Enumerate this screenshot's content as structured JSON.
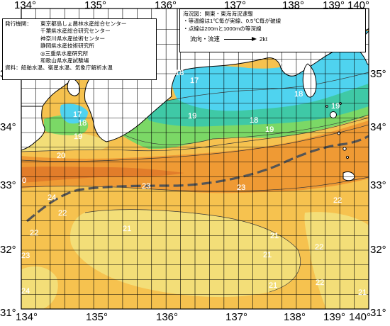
{
  "map": {
    "longitude_labels": [
      "134°",
      "135°",
      "136°",
      "137°",
      "138°",
      "139°",
      "140°"
    ],
    "latitude_labels": [
      "35°",
      "34°",
      "33°",
      "32°",
      "31°"
    ],
    "isotherm_labels": [
      "18",
      "17",
      "18",
      "19",
      "17",
      "18",
      "20",
      "19",
      "18",
      "18",
      "19",
      "19",
      "19",
      "0",
      "23",
      "23",
      "24",
      "22",
      "22",
      "22",
      "22",
      "21",
      "21",
      "21",
      "22",
      "23",
      "21",
      "24",
      "21"
    ],
    "colors": {
      "sea_18": "#4fd3ef",
      "sea_19": "#3fc9a6",
      "sea_20": "#7bd866",
      "sea_21": "#f3de78",
      "sea_22": "#f6c24f",
      "sea_23": "#ef9a34",
      "sea_24": "#e27d2a",
      "land": "#ffffff",
      "grid": "#000000",
      "kuroshio_axis": "#555555"
    }
  },
  "issuer": {
    "label": "発行機関：",
    "orgs": [
      "東京都島しょ農林水産総合センター",
      "千葉県水産総合研究センター",
      "神奈川県水産技術センター",
      "静岡県水産技術研究所",
      "◎三重県水産研究所",
      "和歌山県水産試験場"
    ],
    "source_label": "資料：",
    "source": "船舶水温、衛星水温、気象庁解析水温"
  },
  "info": {
    "title": "海況図：関東・東海海況速報",
    "line1": "・等温線は1℃毎が実線、0.5℃毎が破線",
    "line2": "・点線は200mと1000mの等深線",
    "legend_label": "流向・流速",
    "legend_value": "2kt"
  }
}
